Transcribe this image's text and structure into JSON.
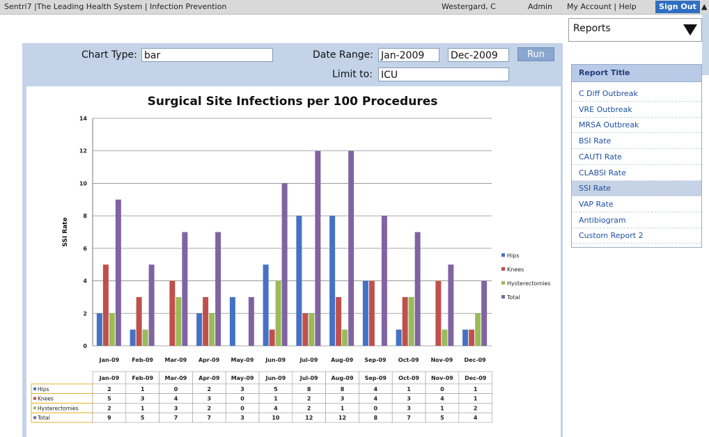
{
  "topbar": {
    "app_path": "Sentri7  |The Leading Health System  |  Infection Prevention",
    "user": "Westergard, C",
    "role": "Admin",
    "links": "My Account  |  Help",
    "signout": "Sign Out"
  },
  "reports_dropdown": {
    "label": "Reports"
  },
  "controls": {
    "chart_type_label": "Chart Type:",
    "chart_type_value": "bar",
    "date_range_label": "Date Range:",
    "date_from": "Jan-2009",
    "date_to": "Dec-2009",
    "run_label": "Run",
    "limit_label": "Limit to:",
    "limit_value": "ICU"
  },
  "report_panel": {
    "title": "Report Title",
    "items": [
      "C Diff Outbreak",
      "VRE Outbreak",
      "MRSA Outbreak",
      "BSI Rate",
      "CAUTI Rate",
      "CLABSI Rate",
      "SSI Rate",
      "VAP Rate",
      "Antibiogram",
      "Custom Report 2"
    ],
    "selected": "SSI Rate"
  },
  "chart_data": {
    "type": "bar",
    "title": "Surgical Site Infections per 100 Procedures",
    "ylabel": "SSI Rate",
    "xlabel": "",
    "ylim": [
      0,
      14
    ],
    "yticks": [
      0,
      2,
      4,
      6,
      8,
      10,
      12,
      14
    ],
    "grid": true,
    "legend_position": "right",
    "categories": [
      "Jan-09",
      "Feb-09",
      "Mar-09",
      "Apr-09",
      "May-09",
      "Jun-09",
      "Jul-09",
      "Aug-09",
      "Sep-09",
      "Oct-09",
      "Nov-09",
      "Dec-09"
    ],
    "series": [
      {
        "name": "Hips",
        "color": "#4472c4",
        "values": [
          2,
          1,
          0,
          2,
          3,
          5,
          8,
          8,
          4,
          1,
          0,
          1
        ]
      },
      {
        "name": "Knees",
        "color": "#c0504d",
        "values": [
          5,
          3,
          4,
          3,
          0,
          1,
          2,
          3,
          4,
          3,
          4,
          1
        ]
      },
      {
        "name": "Hysterectomies",
        "color": "#9bbb59",
        "values": [
          2,
          1,
          3,
          2,
          0,
          4,
          2,
          1,
          0,
          3,
          1,
          2
        ]
      },
      {
        "name": "Total",
        "color": "#8064a2",
        "values": [
          9,
          5,
          7,
          7,
          3,
          10,
          12,
          12,
          8,
          7,
          5,
          4
        ]
      }
    ]
  }
}
